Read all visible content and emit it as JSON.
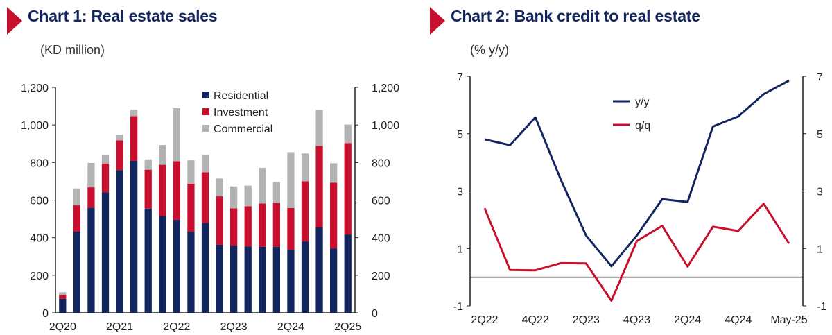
{
  "chart_data": [
    {
      "type": "bar",
      "stacked": true,
      "title": "Chart 1: Real estate sales",
      "ylabel": "(KD million)",
      "ylim": [
        0,
        1200
      ],
      "yticks": [
        0,
        200,
        400,
        600,
        800,
        1000,
        1200
      ],
      "ytick_labels": [
        "0",
        "200",
        "400",
        "600",
        "800",
        "1,000",
        "1,200"
      ],
      "categories": [
        "2Q20",
        "3Q20",
        "4Q20",
        "1Q21",
        "2Q21",
        "3Q21",
        "4Q21",
        "1Q22",
        "2Q22",
        "3Q22",
        "4Q22",
        "1Q23",
        "2Q23",
        "3Q23",
        "4Q23",
        "1Q24",
        "2Q24",
        "3Q24",
        "4Q24",
        "1Q25",
        "2Q25"
      ],
      "xtick_labels": [
        "2Q20",
        "",
        "",
        "",
        "2Q21",
        "",
        "",
        "",
        "2Q22",
        "",
        "",
        "",
        "2Q23",
        "",
        "",
        "",
        "2Q24",
        "",
        "",
        "",
        "2Q25"
      ],
      "series": [
        {
          "name": "Residential",
          "color": "#13255f",
          "values": [
            75,
            432,
            560,
            642,
            760,
            810,
            555,
            515,
            495,
            432,
            478,
            362,
            358,
            354,
            352,
            352,
            336,
            380,
            455,
            343,
            417
          ]
        },
        {
          "name": "Investment",
          "color": "#c8102e",
          "values": [
            20,
            140,
            108,
            153,
            158,
            237,
            207,
            273,
            312,
            255,
            270,
            258,
            198,
            213,
            230,
            233,
            222,
            320,
            433,
            350,
            486
          ]
        },
        {
          "name": "Commercial",
          "color": "#b3b3b3",
          "values": [
            15,
            90,
            130,
            45,
            30,
            35,
            55,
            105,
            282,
            125,
            93,
            95,
            117,
            110,
            190,
            113,
            297,
            148,
            192,
            103,
            99
          ]
        }
      ],
      "legend_position": "top-center",
      "grid": false,
      "secondary_axis": true
    },
    {
      "type": "line",
      "title": "Chart 2: Bank credit to real estate",
      "ylabel": "(% y/y)",
      "ylim": [
        -1,
        7
      ],
      "yticks": [
        -1,
        1,
        3,
        5,
        7
      ],
      "ytick_labels": [
        "-1",
        "1",
        "3",
        "5",
        "7"
      ],
      "x": [
        "2Q22",
        "3Q22",
        "4Q22",
        "1Q23",
        "2Q23",
        "3Q23",
        "4Q23",
        "1Q24",
        "2Q24",
        "3Q24",
        "4Q24",
        "1Q25",
        "May-25"
      ],
      "xtick_labels": [
        "2Q22",
        "",
        "4Q22",
        "",
        "2Q23",
        "",
        "4Q23",
        "",
        "2Q24",
        "",
        "4Q24",
        "",
        "May-25"
      ],
      "series": [
        {
          "name": "y/y",
          "color": "#13255f",
          "values": [
            4.8,
            4.6,
            5.57,
            3.4,
            1.45,
            0.38,
            1.45,
            2.72,
            2.62,
            5.25,
            5.6,
            6.38,
            6.85
          ]
        },
        {
          "name": "q/q",
          "color": "#c8102e",
          "values": [
            2.4,
            0.25,
            0.24,
            0.49,
            0.48,
            -0.82,
            1.26,
            1.79,
            0.37,
            1.76,
            1.61,
            2.56,
            1.17
          ]
        }
      ],
      "legend_position": "top-center",
      "grid": false,
      "zero_line": true,
      "secondary_axis": true
    }
  ]
}
